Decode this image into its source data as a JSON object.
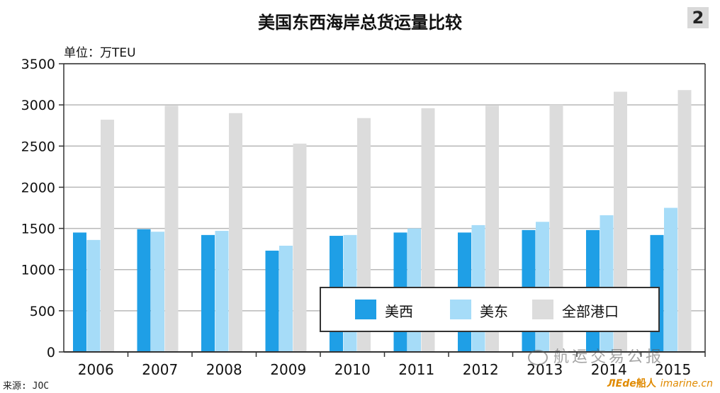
{
  "figure": {
    "title": "美国东西海岸总货运量比较",
    "number": "2",
    "unit": "单位：万TEU",
    "source": "来源: JOC"
  },
  "watermark": {
    "text": "航运交易公报",
    "brand_mark": "ЛЕde",
    "brand_cn": "船人",
    "brand_url": "imarine.cn"
  },
  "colors": {
    "west": "#1f9fe6",
    "east": "#a6dcf8",
    "all": "#dcdcdc"
  },
  "chart_data": {
    "type": "bar",
    "title": "美国东西海岸总货运量比较",
    "ylabel": "单位：万TEU",
    "xlabel": "",
    "categories": [
      "2006",
      "2007",
      "2008",
      "2009",
      "2010",
      "2011",
      "2012",
      "2013",
      "2014",
      "2015"
    ],
    "ylim": [
      0,
      3500
    ],
    "yticks": [
      0,
      500,
      1000,
      1500,
      2000,
      2500,
      3000,
      3500
    ],
    "grid": "horizontal",
    "legend_position": "lower-right",
    "series": [
      {
        "name": "美西",
        "color": "#1f9fe6",
        "values": [
          1450,
          1490,
          1420,
          1230,
          1410,
          1450,
          1450,
          1480,
          1480,
          1420
        ]
      },
      {
        "name": "美东",
        "color": "#a6dcf8",
        "values": [
          1360,
          1460,
          1470,
          1290,
          1420,
          1500,
          1540,
          1580,
          1660,
          1750
        ]
      },
      {
        "name": "全部港口",
        "color": "#dcdcdc",
        "values": [
          2820,
          2990,
          2900,
          2530,
          2840,
          2960,
          2990,
          3000,
          3160,
          3180
        ]
      }
    ]
  }
}
